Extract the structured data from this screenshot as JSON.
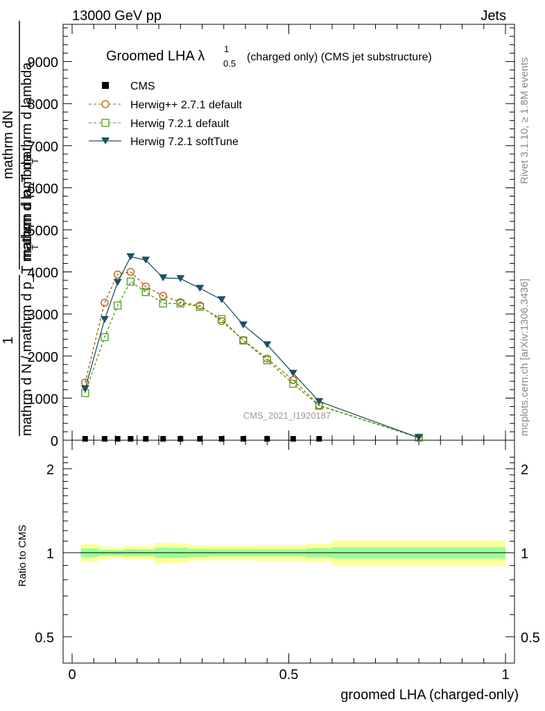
{
  "header": {
    "left": "13000 GeV pp",
    "right": "Jets"
  },
  "side_labels": {
    "rivet": "Rivet 3.1.10, ≥ 1.8M events",
    "mcplots": "mcplots.cern.ch [arXiv:1306.3436]"
  },
  "watermark": "CMS_2021_I1920187",
  "main_ylabel": {
    "numerator_one": "1",
    "line1": "mathrm dN",
    "line2": "mathrm d p_T mathrm d lambda",
    "denominator": "mathrm d N / mathrm d p_T mathrm d lambda",
    "T": "T"
  },
  "ratio_ylabel": "Ratio to CMS",
  "xlabel": "groomed LHA (charged-only)",
  "legend_title": "Groomed LHA λ",
  "legend_title_sup": "1",
  "legend_title_sub": "0.5",
  "legend_title_rest": "(charged only) (CMS jet substructure)",
  "colors": {
    "cms": "#000000",
    "herwigpp": "#b35900",
    "herwig721": "#4a9a1a",
    "softtune": "#1c5066",
    "band_inner": "#99ff99",
    "band_outer": "#ffff99"
  },
  "chart_data": [
    {
      "type": "line",
      "title": "Groomed LHA λ^1_0.5 (charged only) (CMS jet substructure)",
      "xlim": [
        0,
        1
      ],
      "ylim": [
        0,
        9800
      ],
      "y_ticks": [
        0,
        1000,
        2000,
        3000,
        4000,
        5000,
        6000,
        7000,
        8000,
        9000
      ],
      "y_tick_labels": [
        "0",
        "1000",
        "2000",
        "3000",
        "4000",
        "5000",
        "6000",
        "7000",
        "8000",
        "9000"
      ],
      "legend_position": "top-left",
      "series": [
        {
          "name": "CMS",
          "marker": "square-filled",
          "x": [
            0.03,
            0.075,
            0.105,
            0.135,
            0.17,
            0.21,
            0.25,
            0.295,
            0.345,
            0.395,
            0.45,
            0.51,
            0.57
          ],
          "y": [
            0,
            0,
            0,
            0,
            0,
            0,
            0,
            0,
            0,
            0,
            0,
            0,
            0
          ]
        },
        {
          "name": "Herwig++ 2.7.1 default",
          "marker": "circle-open",
          "dash": "dashed",
          "x": [
            0.03,
            0.075,
            0.105,
            0.135,
            0.17,
            0.21,
            0.25,
            0.295,
            0.345,
            0.395,
            0.45,
            0.51,
            0.57,
            0.8
          ],
          "y": [
            1370,
            3270,
            3940,
            4000,
            3650,
            3430,
            3280,
            3200,
            2830,
            2380,
            1940,
            1430,
            830,
            60
          ]
        },
        {
          "name": "Herwig 7.2.1 default",
          "marker": "square-open",
          "dash": "dashed",
          "x": [
            0.03,
            0.075,
            0.105,
            0.135,
            0.17,
            0.21,
            0.25,
            0.295,
            0.345,
            0.395,
            0.45,
            0.51,
            0.57,
            0.8
          ],
          "y": [
            1120,
            2450,
            3200,
            3770,
            3520,
            3250,
            3250,
            3170,
            2880,
            2370,
            1900,
            1340,
            820,
            60
          ]
        },
        {
          "name": "Herwig 7.2.1 softTune",
          "marker": "triangle-down-filled",
          "dash": "solid",
          "x": [
            0.03,
            0.075,
            0.105,
            0.135,
            0.17,
            0.21,
            0.25,
            0.295,
            0.345,
            0.395,
            0.45,
            0.51,
            0.57,
            0.8
          ],
          "y": [
            1220,
            2870,
            3750,
            4360,
            4280,
            3860,
            3840,
            3610,
            3340,
            2740,
            2270,
            1590,
            920,
            60
          ]
        }
      ]
    },
    {
      "type": "area",
      "ylabel": "Ratio to CMS",
      "xlabel": "groomed LHA (charged-only)",
      "xlim": [
        0,
        1
      ],
      "ylim": [
        0.38,
        2.3
      ],
      "x_ticks": [
        0,
        0.5,
        1
      ],
      "x_tick_labels": [
        "0",
        "0.5",
        "1"
      ],
      "y_ticks": [
        0.5,
        1,
        2
      ],
      "y_tick_labels": [
        "0.5",
        "1",
        "2"
      ],
      "reference_line": 1,
      "bin_edges": [
        0,
        0.06,
        0.09,
        0.12,
        0.15,
        0.19,
        0.23,
        0.27,
        0.32,
        0.37,
        0.42,
        0.48,
        0.54,
        0.6,
        1.0
      ],
      "inner_band_halfwidth": [
        0.037,
        0.025,
        0.022,
        0.03,
        0.028,
        0.042,
        0.04,
        0.032,
        0.03,
        0.03,
        0.03,
        0.03,
        0.038,
        0.048
      ],
      "outer_band_halfwidth": [
        0.073,
        0.05,
        0.045,
        0.055,
        0.055,
        0.085,
        0.08,
        0.063,
        0.06,
        0.06,
        0.065,
        0.065,
        0.075,
        0.105
      ]
    }
  ]
}
